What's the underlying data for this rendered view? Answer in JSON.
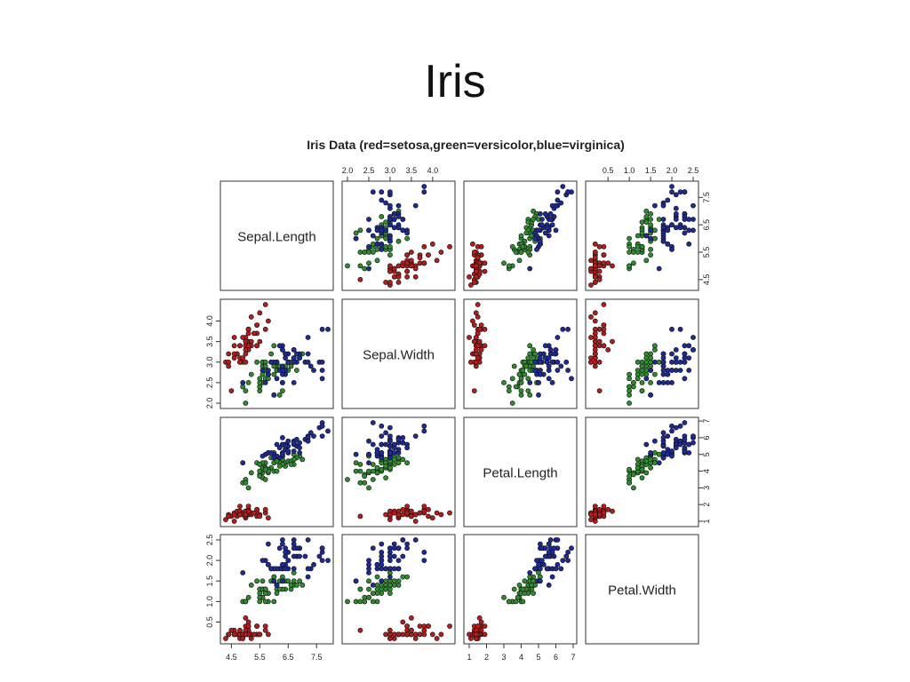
{
  "slide": {
    "title": "Iris"
  },
  "chart_data": {
    "type": "scatter",
    "subtype": "scatterplot-matrix",
    "title": "Iris Data (red=setosa,green=versicolor,blue=virginica)",
    "variables": [
      "Sepal.Length",
      "Sepal.Width",
      "Petal.Length",
      "Petal.Width"
    ],
    "axes": {
      "Sepal.Length": {
        "range": [
          4.3,
          7.9
        ],
        "ticks": [
          4.5,
          5.5,
          6.5,
          7.5
        ]
      },
      "Sepal.Width": {
        "range": [
          2.0,
          4.4
        ],
        "ticks": [
          2.0,
          2.5,
          3.0,
          3.5,
          4.0
        ]
      },
      "Petal.Length": {
        "range": [
          1.0,
          6.9
        ],
        "ticks": [
          1,
          2,
          3,
          4,
          5,
          6,
          7
        ]
      },
      "Petal.Width": {
        "range": [
          0.1,
          2.5
        ],
        "ticks": [
          0.5,
          1.0,
          1.5,
          2.0,
          2.5
        ]
      }
    },
    "tick_labels": {
      "Sepal.Length": [
        "4.5",
        "5.5",
        "6.5",
        "7.5"
      ],
      "Sepal.Width": [
        "2.0",
        "2.5",
        "3.0",
        "3.5",
        "4.0"
      ],
      "Petal.Length": [
        "1",
        "2",
        "3",
        "4",
        "5",
        "6",
        "7"
      ],
      "Petal.Width": [
        "0.5",
        "1.0",
        "1.5",
        "2.0",
        "2.5"
      ]
    },
    "colors": {
      "setosa": "#b01e1e",
      "versicolor": "#2e8b2e",
      "virginica": "#1e2a96"
    },
    "series": [
      {
        "color": "#b01e1e",
        "values": [
          [
            5.1,
            3.5,
            1.4,
            0.2
          ],
          [
            4.9,
            3.0,
            1.4,
            0.2
          ],
          [
            4.7,
            3.2,
            1.3,
            0.2
          ],
          [
            4.6,
            3.1,
            1.5,
            0.2
          ],
          [
            5.0,
            3.6,
            1.4,
            0.2
          ],
          [
            5.4,
            3.9,
            1.7,
            0.4
          ],
          [
            4.6,
            3.4,
            1.4,
            0.3
          ],
          [
            5.0,
            3.4,
            1.5,
            0.2
          ],
          [
            4.4,
            2.9,
            1.4,
            0.2
          ],
          [
            4.9,
            3.1,
            1.5,
            0.1
          ],
          [
            5.4,
            3.7,
            1.5,
            0.2
          ],
          [
            4.8,
            3.4,
            1.6,
            0.2
          ],
          [
            4.8,
            3.0,
            1.4,
            0.1
          ],
          [
            4.3,
            3.0,
            1.1,
            0.1
          ],
          [
            5.8,
            4.0,
            1.2,
            0.2
          ],
          [
            5.7,
            4.4,
            1.5,
            0.4
          ],
          [
            5.4,
            3.9,
            1.3,
            0.4
          ],
          [
            5.1,
            3.5,
            1.4,
            0.3
          ],
          [
            5.7,
            3.8,
            1.7,
            0.3
          ],
          [
            5.1,
            3.8,
            1.5,
            0.3
          ],
          [
            5.4,
            3.4,
            1.7,
            0.2
          ],
          [
            5.1,
            3.7,
            1.5,
            0.4
          ],
          [
            4.6,
            3.6,
            1.0,
            0.2
          ],
          [
            5.1,
            3.3,
            1.7,
            0.5
          ],
          [
            4.8,
            3.4,
            1.9,
            0.2
          ],
          [
            5.0,
            3.0,
            1.6,
            0.2
          ],
          [
            5.0,
            3.4,
            1.6,
            0.4
          ],
          [
            5.2,
            3.5,
            1.5,
            0.2
          ],
          [
            5.2,
            3.4,
            1.4,
            0.2
          ],
          [
            4.7,
            3.2,
            1.6,
            0.2
          ],
          [
            4.8,
            3.1,
            1.6,
            0.2
          ],
          [
            5.4,
            3.4,
            1.5,
            0.4
          ],
          [
            5.2,
            4.1,
            1.5,
            0.1
          ],
          [
            5.5,
            4.2,
            1.4,
            0.2
          ],
          [
            4.9,
            3.1,
            1.5,
            0.2
          ],
          [
            5.0,
            3.2,
            1.2,
            0.2
          ],
          [
            5.5,
            3.5,
            1.3,
            0.2
          ],
          [
            4.9,
            3.6,
            1.4,
            0.1
          ],
          [
            4.4,
            3.0,
            1.3,
            0.2
          ],
          [
            5.1,
            3.4,
            1.5,
            0.2
          ],
          [
            5.0,
            3.5,
            1.3,
            0.3
          ],
          [
            4.5,
            2.3,
            1.3,
            0.3
          ],
          [
            4.4,
            3.2,
            1.3,
            0.2
          ],
          [
            5.0,
            3.5,
            1.6,
            0.6
          ],
          [
            5.1,
            3.8,
            1.9,
            0.4
          ],
          [
            4.8,
            3.0,
            1.4,
            0.3
          ],
          [
            5.1,
            3.8,
            1.6,
            0.2
          ],
          [
            4.6,
            3.2,
            1.4,
            0.2
          ],
          [
            5.3,
            3.7,
            1.5,
            0.2
          ],
          [
            5.0,
            3.3,
            1.4,
            0.2
          ]
        ]
      },
      {
        "color": "#2e8b2e",
        "values": [
          [
            7.0,
            3.2,
            4.7,
            1.4
          ],
          [
            6.4,
            3.2,
            4.5,
            1.5
          ],
          [
            6.9,
            3.1,
            4.9,
            1.5
          ],
          [
            5.5,
            2.3,
            4.0,
            1.3
          ],
          [
            6.5,
            2.8,
            4.6,
            1.5
          ],
          [
            5.7,
            2.8,
            4.5,
            1.3
          ],
          [
            6.3,
            3.3,
            4.7,
            1.6
          ],
          [
            4.9,
            2.4,
            3.3,
            1.0
          ],
          [
            6.6,
            2.9,
            4.6,
            1.3
          ],
          [
            5.2,
            2.7,
            3.9,
            1.4
          ],
          [
            5.0,
            2.0,
            3.5,
            1.0
          ],
          [
            5.9,
            3.0,
            4.2,
            1.5
          ],
          [
            6.0,
            2.2,
            4.0,
            1.0
          ],
          [
            6.1,
            2.9,
            4.7,
            1.4
          ],
          [
            5.6,
            2.9,
            3.6,
            1.3
          ],
          [
            6.7,
            3.1,
            4.4,
            1.4
          ],
          [
            5.6,
            3.0,
            4.5,
            1.5
          ],
          [
            5.8,
            2.7,
            4.1,
            1.0
          ],
          [
            6.2,
            2.2,
            4.5,
            1.5
          ],
          [
            5.6,
            2.5,
            3.9,
            1.1
          ],
          [
            5.9,
            3.2,
            4.8,
            1.8
          ],
          [
            6.1,
            2.8,
            4.0,
            1.3
          ],
          [
            6.3,
            2.5,
            4.9,
            1.5
          ],
          [
            6.1,
            2.8,
            4.7,
            1.2
          ],
          [
            6.4,
            2.9,
            4.3,
            1.3
          ],
          [
            6.6,
            3.0,
            4.4,
            1.4
          ],
          [
            6.8,
            2.8,
            4.8,
            1.4
          ],
          [
            6.7,
            3.0,
            5.0,
            1.7
          ],
          [
            6.0,
            2.9,
            4.5,
            1.5
          ],
          [
            5.7,
            2.6,
            3.5,
            1.0
          ],
          [
            5.5,
            2.4,
            3.8,
            1.1
          ],
          [
            5.5,
            2.4,
            3.7,
            1.0
          ],
          [
            5.8,
            2.7,
            3.9,
            1.2
          ],
          [
            6.0,
            2.7,
            5.1,
            1.6
          ],
          [
            5.4,
            3.0,
            4.5,
            1.5
          ],
          [
            6.0,
            3.4,
            4.5,
            1.6
          ],
          [
            6.7,
            3.1,
            4.7,
            1.5
          ],
          [
            6.3,
            2.3,
            4.4,
            1.3
          ],
          [
            5.6,
            3.0,
            4.1,
            1.3
          ],
          [
            5.5,
            2.5,
            4.0,
            1.3
          ],
          [
            5.5,
            2.6,
            4.4,
            1.2
          ],
          [
            6.1,
            3.0,
            4.6,
            1.4
          ],
          [
            5.8,
            2.6,
            4.0,
            1.2
          ],
          [
            5.0,
            2.3,
            3.3,
            1.0
          ],
          [
            5.6,
            2.7,
            4.2,
            1.3
          ],
          [
            5.7,
            3.0,
            4.2,
            1.2
          ],
          [
            5.7,
            2.9,
            4.2,
            1.3
          ],
          [
            6.2,
            2.9,
            4.3,
            1.3
          ],
          [
            5.1,
            2.5,
            3.0,
            1.1
          ],
          [
            5.7,
            2.8,
            4.1,
            1.3
          ]
        ]
      },
      {
        "color": "#1e2a96",
        "values": [
          [
            6.3,
            3.3,
            6.0,
            2.5
          ],
          [
            5.8,
            2.7,
            5.1,
            1.9
          ],
          [
            7.1,
            3.0,
            5.9,
            2.1
          ],
          [
            6.3,
            2.9,
            5.6,
            1.8
          ],
          [
            6.5,
            3.0,
            5.8,
            2.2
          ],
          [
            7.6,
            3.0,
            6.6,
            2.1
          ],
          [
            4.9,
            2.5,
            4.5,
            1.7
          ],
          [
            7.3,
            2.9,
            6.3,
            1.8
          ],
          [
            6.7,
            2.5,
            5.8,
            1.8
          ],
          [
            7.2,
            3.6,
            6.1,
            2.5
          ],
          [
            6.5,
            3.2,
            5.1,
            2.0
          ],
          [
            6.4,
            2.7,
            5.3,
            1.9
          ],
          [
            6.8,
            3.0,
            5.5,
            2.1
          ],
          [
            5.7,
            2.5,
            5.0,
            2.0
          ],
          [
            5.8,
            2.8,
            5.1,
            2.4
          ],
          [
            6.4,
            3.2,
            5.3,
            2.3
          ],
          [
            6.5,
            3.0,
            5.5,
            1.8
          ],
          [
            7.7,
            3.8,
            6.7,
            2.2
          ],
          [
            7.7,
            2.6,
            6.9,
            2.3
          ],
          [
            6.0,
            2.2,
            5.0,
            1.5
          ],
          [
            6.9,
            3.2,
            5.7,
            2.3
          ],
          [
            5.6,
            2.8,
            4.9,
            2.0
          ],
          [
            7.7,
            2.8,
            6.7,
            2.0
          ],
          [
            6.3,
            2.7,
            4.9,
            1.8
          ],
          [
            6.7,
            3.3,
            5.7,
            2.1
          ],
          [
            7.2,
            3.2,
            6.0,
            1.8
          ],
          [
            6.2,
            2.8,
            4.8,
            1.8
          ],
          [
            6.1,
            3.0,
            4.9,
            1.8
          ],
          [
            6.4,
            2.8,
            5.6,
            2.1
          ],
          [
            7.2,
            3.0,
            5.8,
            1.6
          ],
          [
            7.4,
            2.8,
            6.1,
            1.9
          ],
          [
            7.9,
            3.8,
            6.4,
            2.0
          ],
          [
            6.4,
            2.8,
            5.6,
            2.2
          ],
          [
            6.3,
            2.8,
            5.1,
            1.5
          ],
          [
            6.1,
            2.6,
            5.6,
            1.4
          ],
          [
            7.7,
            3.0,
            6.1,
            2.3
          ],
          [
            6.3,
            3.4,
            5.6,
            2.4
          ],
          [
            6.4,
            3.1,
            5.5,
            1.8
          ],
          [
            6.0,
            3.0,
            4.8,
            1.8
          ],
          [
            6.9,
            3.1,
            5.4,
            2.1
          ],
          [
            6.7,
            3.1,
            5.6,
            2.4
          ],
          [
            6.9,
            3.1,
            5.1,
            2.3
          ],
          [
            5.8,
            2.7,
            5.1,
            1.9
          ],
          [
            6.8,
            3.2,
            5.9,
            2.3
          ],
          [
            6.7,
            3.3,
            5.7,
            2.5
          ],
          [
            6.7,
            3.0,
            5.2,
            2.3
          ],
          [
            6.3,
            2.5,
            5.0,
            1.9
          ],
          [
            6.5,
            3.0,
            5.2,
            2.0
          ],
          [
            6.2,
            3.4,
            5.4,
            2.3
          ],
          [
            5.9,
            3.0,
            5.1,
            1.8
          ]
        ]
      }
    ]
  }
}
